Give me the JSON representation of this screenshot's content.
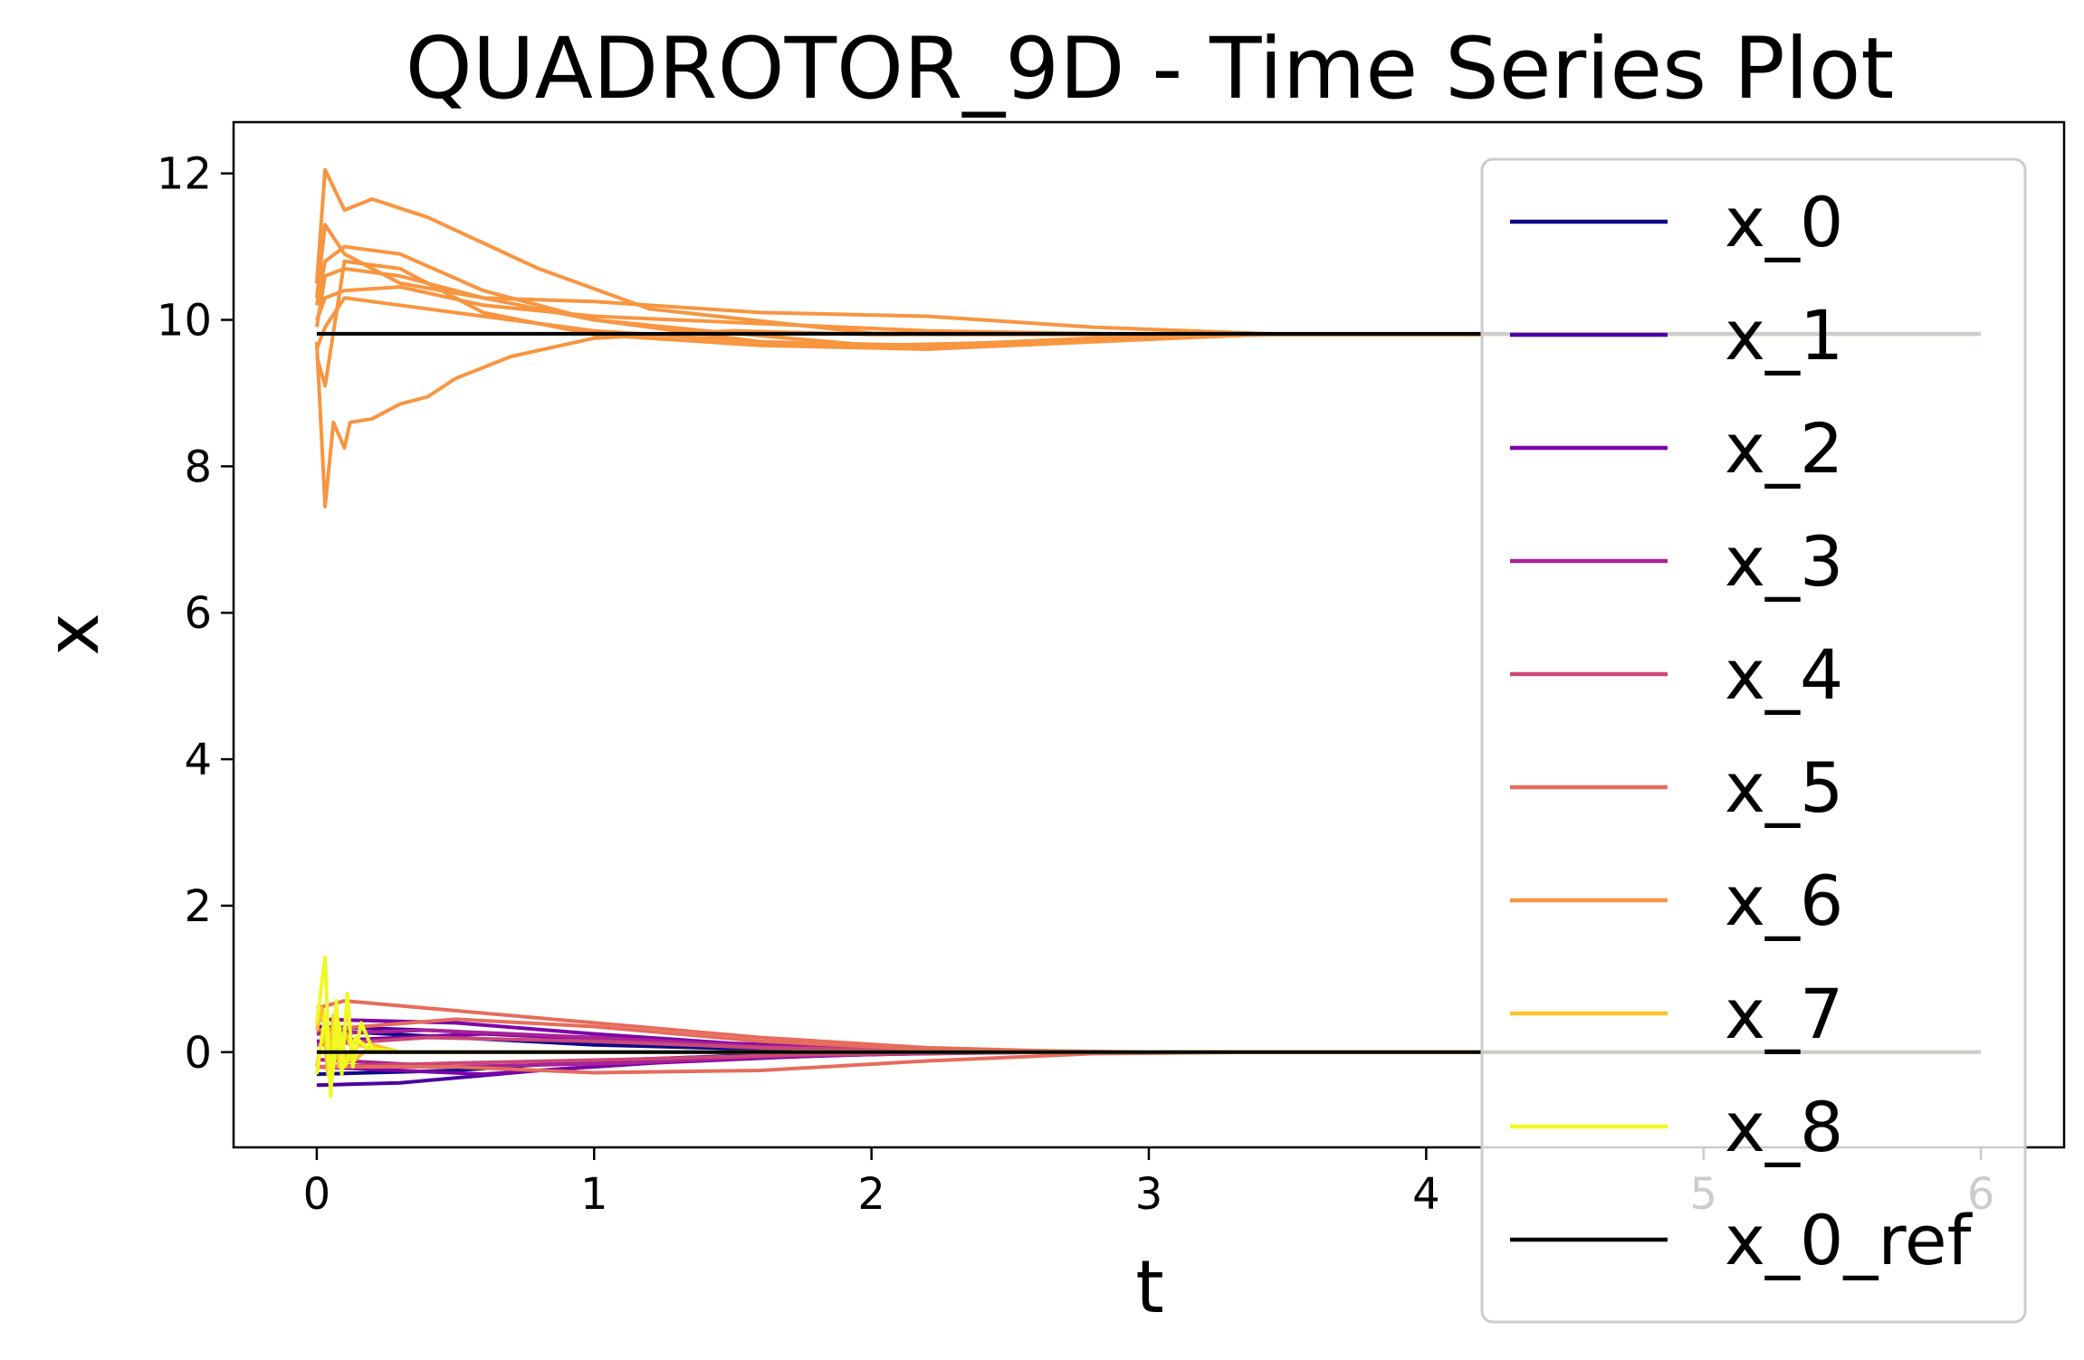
{
  "chart_data": {
    "type": "line",
    "title": "QUADROTOR_9D - Time Series Plot",
    "xlabel": "t",
    "ylabel": "x",
    "xlim": [
      -0.3,
      6.3
    ],
    "ylim": [
      -1.3,
      12.7
    ],
    "xticks": [
      0,
      1,
      2,
      3,
      4,
      5,
      6
    ],
    "yticks": [
      0,
      2,
      4,
      6,
      8,
      10,
      12
    ],
    "grid": false,
    "legend_position": "right",
    "series": [
      {
        "name": "x_0",
        "color": "#0d0887",
        "runs": [
          [
            [
              0,
              0.3
            ],
            [
              0.5,
              0.2
            ],
            [
              1,
              0.1
            ],
            [
              1.5,
              0.05
            ],
            [
              2,
              0.02
            ],
            [
              2.5,
              0.0
            ],
            [
              3,
              0
            ],
            [
              6,
              0
            ]
          ],
          [
            [
              0,
              -0.3
            ],
            [
              0.5,
              -0.25
            ],
            [
              1,
              -0.12
            ],
            [
              1.5,
              -0.05
            ],
            [
              2,
              -0.02
            ],
            [
              2.5,
              0
            ],
            [
              3,
              0
            ],
            [
              6,
              0
            ]
          ]
        ]
      },
      {
        "name": "x_1",
        "color": "#4c02a1",
        "runs": [
          [
            [
              0,
              -0.45
            ],
            [
              0.3,
              -0.42
            ],
            [
              0.8,
              -0.25
            ],
            [
              1.4,
              -0.1
            ],
            [
              2,
              -0.03
            ],
            [
              2.6,
              0
            ],
            [
              6,
              0
            ]
          ],
          [
            [
              0,
              0.35
            ],
            [
              0.4,
              0.3
            ],
            [
              1,
              0.18
            ],
            [
              1.6,
              0.07
            ],
            [
              2.2,
              0.02
            ],
            [
              2.8,
              0
            ],
            [
              6,
              0
            ]
          ]
        ]
      },
      {
        "name": "x_2",
        "color": "#7e03a8",
        "runs": [
          [
            [
              0,
              0.45
            ],
            [
              0.5,
              0.4
            ],
            [
              1,
              0.25
            ],
            [
              1.5,
              0.12
            ],
            [
              2,
              0.05
            ],
            [
              2.6,
              0
            ],
            [
              6,
              0
            ]
          ],
          [
            [
              0,
              -0.2
            ],
            [
              0.6,
              -0.3
            ],
            [
              1.2,
              -0.15
            ],
            [
              1.8,
              -0.05
            ],
            [
              2.4,
              0
            ],
            [
              6,
              0
            ]
          ],
          [
            [
              0,
              0.15
            ],
            [
              0.6,
              0.25
            ],
            [
              1.2,
              0.15
            ],
            [
              1.8,
              0.05
            ],
            [
              2.4,
              0
            ],
            [
              6,
              0
            ]
          ]
        ]
      },
      {
        "name": "x_3",
        "color": "#a92395",
        "runs": [
          [
            [
              0,
              0.25
            ],
            [
              0.4,
              0.3
            ],
            [
              1,
              0.2
            ],
            [
              1.6,
              0.08
            ],
            [
              2.4,
              0.01
            ],
            [
              3,
              0
            ],
            [
              6,
              0
            ]
          ],
          [
            [
              0,
              -0.1
            ],
            [
              0.5,
              -0.2
            ],
            [
              1.1,
              -0.15
            ],
            [
              1.7,
              -0.05
            ],
            [
              2.5,
              0
            ],
            [
              6,
              0
            ]
          ]
        ]
      },
      {
        "name": "x_4",
        "color": "#cc4778",
        "runs": [
          [
            [
              0,
              0.1
            ],
            [
              0.4,
              0.2
            ],
            [
              1,
              0.15
            ],
            [
              1.6,
              0.06
            ],
            [
              2.4,
              0.01
            ],
            [
              3,
              0
            ],
            [
              6,
              0
            ]
          ],
          [
            [
              0,
              -0.2
            ],
            [
              0.5,
              -0.15
            ],
            [
              1.1,
              -0.1
            ],
            [
              1.8,
              -0.03
            ],
            [
              2.6,
              0
            ],
            [
              6,
              0
            ]
          ]
        ]
      },
      {
        "name": "x_5",
        "color": "#e66c5c",
        "runs": [
          [
            [
              0,
              0.6
            ],
            [
              0.1,
              0.7
            ],
            [
              0.4,
              0.6
            ],
            [
              1,
              0.4
            ],
            [
              1.6,
              0.2
            ],
            [
              2.2,
              0.06
            ],
            [
              2.8,
              0
            ],
            [
              6,
              0
            ]
          ],
          [
            [
              0,
              -0.2
            ],
            [
              0.5,
              -0.2
            ],
            [
              1,
              -0.28
            ],
            [
              1.6,
              -0.25
            ],
            [
              2.2,
              -0.12
            ],
            [
              2.8,
              -0.02
            ],
            [
              3.4,
              0
            ],
            [
              6,
              0
            ]
          ],
          [
            [
              0,
              0.3
            ],
            [
              0.5,
              0.45
            ],
            [
              1,
              0.35
            ],
            [
              1.6,
              0.15
            ],
            [
              2.2,
              0.04
            ],
            [
              3,
              0
            ],
            [
              6,
              0
            ]
          ]
        ]
      },
      {
        "name": "x_6",
        "color": "#f89540",
        "runs": [
          [
            [
              0,
              10.5
            ],
            [
              0.03,
              12.05
            ],
            [
              0.1,
              11.5
            ],
            [
              0.2,
              11.65
            ],
            [
              0.4,
              11.4
            ],
            [
              0.8,
              10.7
            ],
            [
              1.2,
              10.15
            ],
            [
              2,
              9.82
            ],
            [
              3,
              9.8
            ],
            [
              6,
              9.8
            ]
          ],
          [
            [
              0,
              10.2
            ],
            [
              0.03,
              10.8
            ],
            [
              0.1,
              11
            ],
            [
              0.3,
              10.9
            ],
            [
              0.6,
              10.4
            ],
            [
              1,
              10
            ],
            [
              1.6,
              9.7
            ],
            [
              2.2,
              9.6
            ],
            [
              2.8,
              9.75
            ],
            [
              3.5,
              9.8
            ],
            [
              6,
              9.8
            ]
          ],
          [
            [
              0,
              10.3
            ],
            [
              0.03,
              11.3
            ],
            [
              0.1,
              10.9
            ],
            [
              0.3,
              10.5
            ],
            [
              0.6,
              10.3
            ],
            [
              1,
              10.25
            ],
            [
              1.6,
              10.1
            ],
            [
              2.2,
              10.05
            ],
            [
              2.8,
              9.9
            ],
            [
              3.5,
              9.8
            ],
            [
              6,
              9.8
            ]
          ],
          [
            [
              0,
              9.9
            ],
            [
              0.03,
              10.6
            ],
            [
              0.1,
              10.7
            ],
            [
              0.3,
              10.6
            ],
            [
              0.6,
              10.3
            ],
            [
              1,
              10
            ],
            [
              1.4,
              9.85
            ],
            [
              2,
              9.65
            ],
            [
              2.6,
              9.7
            ],
            [
              3.2,
              9.8
            ],
            [
              6,
              9.8
            ]
          ],
          [
            [
              0,
              10
            ],
            [
              0.03,
              10.3
            ],
            [
              0.1,
              10.4
            ],
            [
              0.3,
              10.45
            ],
            [
              0.6,
              10.2
            ],
            [
              1,
              10.05
            ],
            [
              1.6,
              9.95
            ],
            [
              2.2,
              9.85
            ],
            [
              3,
              9.8
            ],
            [
              6,
              9.8
            ]
          ],
          [
            [
              0,
              9.6
            ],
            [
              0.03,
              9.9
            ],
            [
              0.1,
              10.3
            ],
            [
              0.3,
              10.2
            ],
            [
              0.6,
              10.05
            ],
            [
              1,
              9.85
            ],
            [
              1.6,
              9.7
            ],
            [
              2.2,
              9.65
            ],
            [
              2.8,
              9.75
            ],
            [
              3.4,
              9.8
            ],
            [
              6,
              9.8
            ]
          ],
          [
            [
              0,
              9.5
            ],
            [
              0.03,
              9.1
            ],
            [
              0.1,
              10.8
            ],
            [
              0.3,
              10.7
            ],
            [
              0.6,
              10.1
            ],
            [
              1,
              9.8
            ],
            [
              1.6,
              9.65
            ],
            [
              2.2,
              9.6
            ],
            [
              2.8,
              9.7
            ],
            [
              3.4,
              9.8
            ],
            [
              6,
              9.8
            ]
          ],
          [
            [
              0,
              9.7
            ],
            [
              0.03,
              7.45
            ],
            [
              0.06,
              8.6
            ],
            [
              0.1,
              8.25
            ],
            [
              0.12,
              8.6
            ],
            [
              0.2,
              8.65
            ],
            [
              0.3,
              8.85
            ],
            [
              0.4,
              8.95
            ],
            [
              0.5,
              9.2
            ],
            [
              0.7,
              9.5
            ],
            [
              1,
              9.75
            ],
            [
              1.5,
              9.85
            ],
            [
              2,
              9.8
            ],
            [
              6,
              9.8
            ]
          ]
        ]
      },
      {
        "name": "x_7",
        "color": "#fdc328",
        "runs": [
          [
            [
              0,
              0.3
            ],
            [
              0.02,
              0.6
            ],
            [
              0.04,
              -0.3
            ],
            [
              0.06,
              0.5
            ],
            [
              0.08,
              -0.2
            ],
            [
              0.1,
              0.3
            ],
            [
              0.14,
              -0.1
            ],
            [
              0.2,
              0.1
            ],
            [
              0.3,
              0.0
            ],
            [
              0.5,
              0
            ],
            [
              6,
              0
            ]
          ],
          [
            [
              0,
              -0.2
            ],
            [
              0.03,
              0.4
            ],
            [
              0.05,
              -0.4
            ],
            [
              0.08,
              0.3
            ],
            [
              0.11,
              -0.15
            ],
            [
              0.15,
              0.1
            ],
            [
              0.25,
              0
            ],
            [
              6,
              0
            ]
          ]
        ]
      },
      {
        "name": "x_8",
        "color": "#f0f921",
        "runs": [
          [
            [
              0,
              0.4
            ],
            [
              0.03,
              1.3
            ],
            [
              0.05,
              -0.6
            ],
            [
              0.07,
              0.7
            ],
            [
              0.09,
              -0.3
            ],
            [
              0.11,
              0.8
            ],
            [
              0.13,
              -0.2
            ],
            [
              0.16,
              0.4
            ],
            [
              0.2,
              0.05
            ],
            [
              0.3,
              0
            ],
            [
              6,
              0
            ]
          ],
          [
            [
              0,
              -0.3
            ],
            [
              0.03,
              0.5
            ],
            [
              0.05,
              -0.5
            ],
            [
              0.08,
              0.4
            ],
            [
              0.1,
              -0.2
            ],
            [
              0.14,
              0.2
            ],
            [
              0.2,
              0
            ],
            [
              6,
              0
            ]
          ]
        ]
      },
      {
        "name": "x_0_ref",
        "color": "#000000",
        "runs": [
          [
            [
              0,
              9.81
            ],
            [
              6,
              9.81
            ]
          ],
          [
            [
              0,
              0
            ],
            [
              6,
              0
            ]
          ]
        ]
      }
    ]
  }
}
